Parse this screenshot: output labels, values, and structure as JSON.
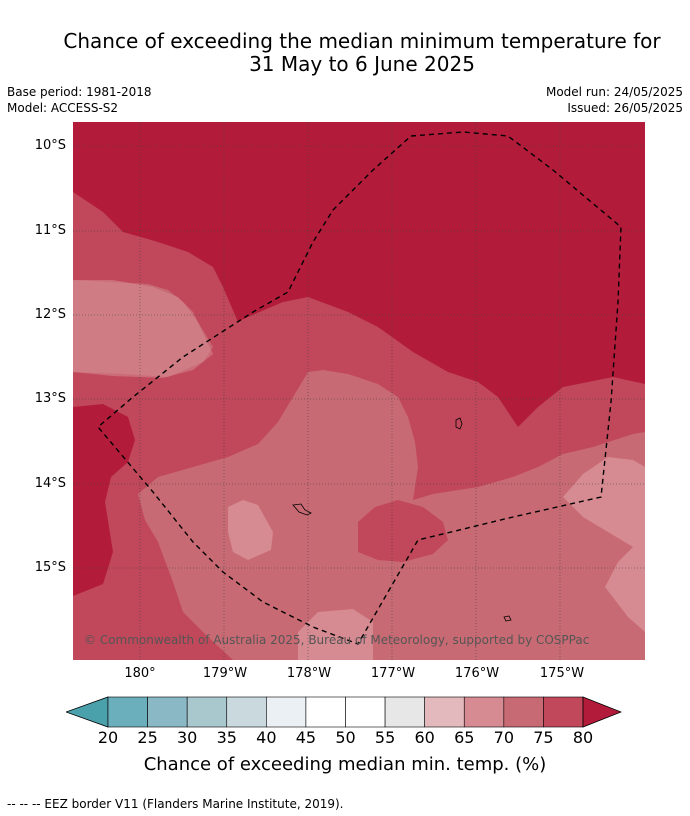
{
  "title_line1": "Chance of exceeding the median minimum temperature for",
  "title_line2": "31 May to 6 June 2025",
  "meta": {
    "base_period": "Base period: 1981-2018",
    "model": "Model: ACCESS-S2",
    "model_run": "Model run: 24/05/2025",
    "issued": "Issued: 26/05/2025"
  },
  "lat_labels": [
    "10°S",
    "11°S",
    "12°S",
    "13°S",
    "14°S",
    "15°S"
  ],
  "lon_labels": [
    "180°",
    "179°W",
    "178°W",
    "177°W",
    "176°W",
    "175°W"
  ],
  "credit": "© Commonwealth of Australia 2025, Bureau of Meteorology, supported by COSPPac",
  "colorbar": {
    "ticks": [
      "20",
      "25",
      "30",
      "35",
      "40",
      "45",
      "50",
      "55",
      "60",
      "65",
      "70",
      "75",
      "80"
    ],
    "label": "Chance of exceeding median min. temp. (%)",
    "colors": [
      "#4aa0ab",
      "#6aafbb",
      "#8ab9c5",
      "#a9c8ce",
      "#cad9de",
      "#eaf0f3",
      "#ffffff",
      "#ffffff",
      "#e7e7e7",
      "#e3b9bd",
      "#d68a91",
      "#c86a73",
      "#c0485a",
      "#b21c3a"
    ]
  },
  "footer": "-- -- -- EEZ border V11 (Flanders Marine Institute, 2019).",
  "map_colors": {
    "c80": "#b21c3a",
    "c75": "#c0485a",
    "c70": "#c86a73",
    "c65": "#d68a91"
  }
}
